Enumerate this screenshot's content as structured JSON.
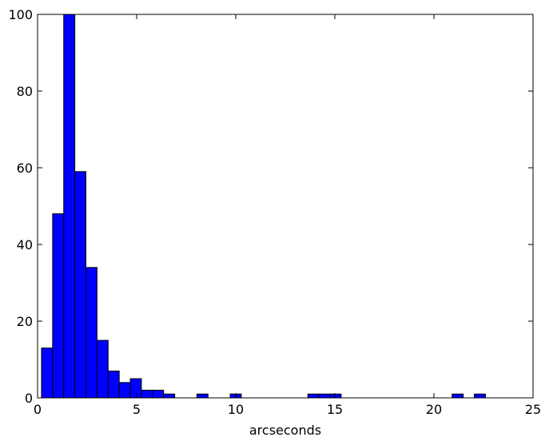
{
  "chart_data": {
    "type": "histogram",
    "xlabel": "arcseconds",
    "bins": [
      0.2,
      0.76,
      1.32,
      1.88,
      2.44,
      3.0,
      3.56,
      4.12,
      4.68,
      5.24,
      5.8,
      6.36,
      6.92,
      7.48,
      8.04,
      8.6,
      9.16,
      9.72,
      10.28,
      10.84,
      11.4,
      11.96,
      12.52,
      13.08,
      13.64,
      14.2,
      14.76,
      15.32,
      15.88,
      16.44,
      17.0,
      17.56,
      18.12,
      18.68,
      19.24,
      19.8,
      20.36,
      20.92,
      21.48,
      22.04,
      22.6
    ],
    "values": [
      13,
      48,
      100,
      59,
      34,
      15,
      7,
      4,
      5,
      2,
      2,
      1,
      0,
      0,
      1,
      0,
      0,
      1,
      0,
      0,
      0,
      0,
      0,
      0,
      1,
      1,
      1,
      0,
      0,
      0,
      0,
      0,
      0,
      0,
      0,
      0,
      0,
      1,
      0,
      1
    ],
    "color": "#0000ff",
    "xlim": [
      0,
      25
    ],
    "xticks": [
      0,
      5,
      10,
      15,
      20,
      25
    ],
    "ylim": [
      0,
      100
    ],
    "yticks": [
      0,
      20,
      40,
      60,
      80,
      100
    ]
  }
}
